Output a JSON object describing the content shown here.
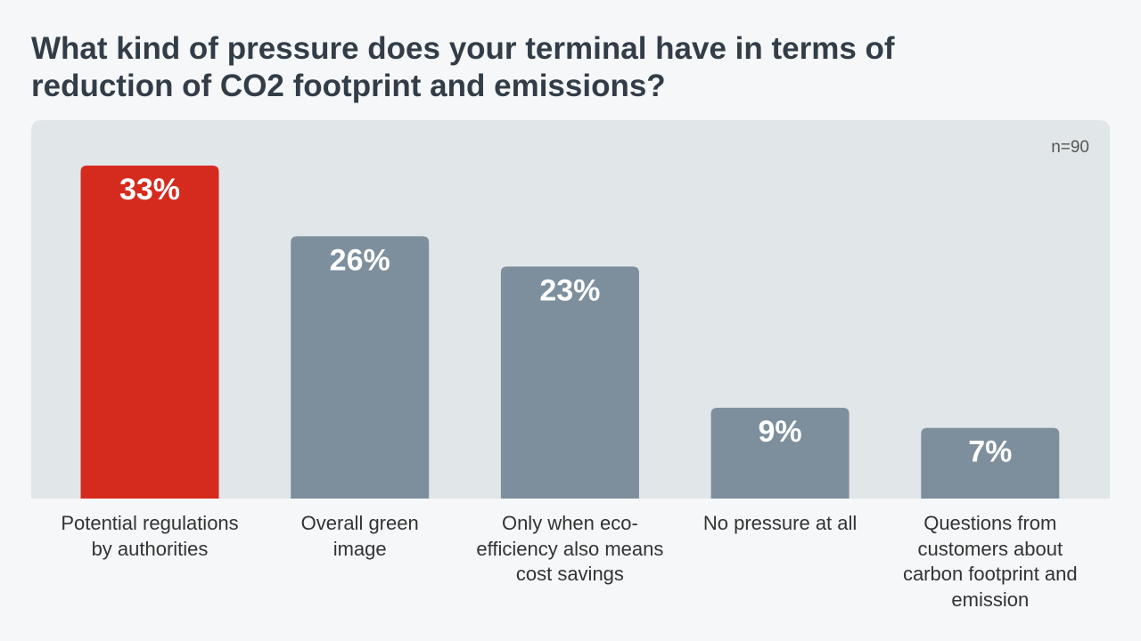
{
  "chart_data": {
    "type": "bar",
    "title": "What kind of pressure does your terminal have in terms of reduction of CO2 footprint and emissions?",
    "annotation": "n=90",
    "categories": [
      "Potential regulations by authorities",
      "Overall green image",
      "Only when eco-efficiency also means cost savings",
      "No pressure at all",
      "Questions from customers about carbon footprint and emission"
    ],
    "values": [
      33,
      26,
      23,
      9,
      7
    ],
    "value_labels": [
      "33%",
      "26%",
      "23%",
      "9%",
      "7%"
    ],
    "colors": [
      "#d52b1e",
      "#7d8f9d",
      "#7d8f9d",
      "#7d8f9d",
      "#7d8f9d"
    ]
  }
}
